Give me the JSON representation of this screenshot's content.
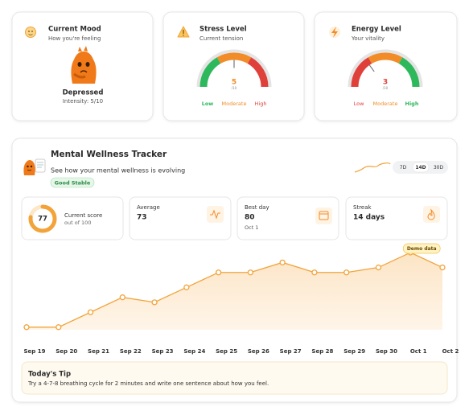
{
  "mood": {
    "title": "Current Mood",
    "subtitle": "How you're feeling",
    "state": "Depressed",
    "intensity": "Intensity: 5/10"
  },
  "stress": {
    "title": "Stress Level",
    "subtitle": "Current tension",
    "value": 5,
    "max": 10,
    "max_label": "/10",
    "labels": [
      "Low",
      "Moderate",
      "High"
    ],
    "colors": [
      "#2eb85c",
      "#f28c28",
      "#e0403a"
    ]
  },
  "energy": {
    "title": "Energy Level",
    "subtitle": "Your vitality",
    "value": 3,
    "max": 10,
    "max_label": "/10",
    "labels": [
      "Low",
      "Moderate",
      "High"
    ],
    "colors": [
      "#e0403a",
      "#f28c28",
      "#2eb85c"
    ]
  },
  "tracker": {
    "title": "Mental Wellness Tracker",
    "subtitle": "See how your mental wellness is evolving",
    "badge": "Good Stable",
    "ranges": [
      "7D",
      "14D",
      "30D"
    ],
    "active_range": 1,
    "score": {
      "label": "Current score",
      "value": 77,
      "max": 100,
      "max_label": "out of 100"
    },
    "average": {
      "label": "Average",
      "value": 73
    },
    "best_day": {
      "label": "Best day",
      "value": 80,
      "date": "Oct 1"
    },
    "streak": {
      "label": "Streak",
      "value": "14 days"
    }
  },
  "chart_data": {
    "type": "line",
    "categories": [
      "Sep 19",
      "Sep 20",
      "Sep 21",
      "Sep 22",
      "Sep 23",
      "Sep 24",
      "Sep 25",
      "Sep 26",
      "Sep 27",
      "Sep 28",
      "Sep 29",
      "Sep 30",
      "Oct 1",
      "Oct 2"
    ],
    "values": [
      65,
      65,
      68,
      71,
      70,
      73,
      76,
      76,
      78,
      76,
      76,
      77,
      80,
      77
    ],
    "color": "#f2a33a",
    "ylim": [
      64,
      82
    ],
    "annotation": "Demo data"
  },
  "tip": {
    "title": "Today's Tip",
    "text": "Try a 4-7-8 breathing cycle for 2 minutes and write one sentence about how you feel."
  }
}
